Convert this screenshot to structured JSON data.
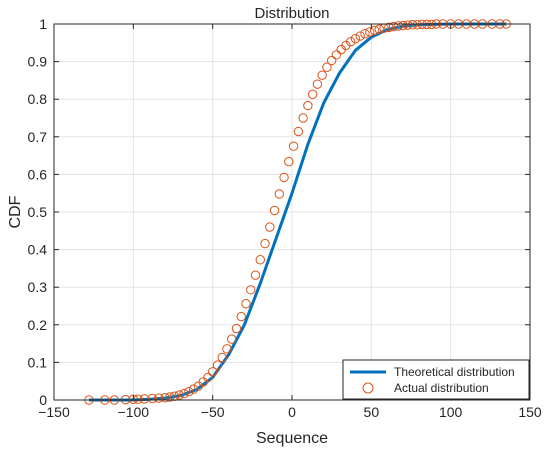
{
  "chart_data": {
    "type": "line",
    "title": "Distribution",
    "xlabel": "Sequence",
    "ylabel": "CDF",
    "xlim": [
      -150,
      150
    ],
    "ylim": [
      0,
      1
    ],
    "xticks": [
      "−150",
      "−100",
      "−50",
      "0",
      "50",
      "100",
      "150"
    ],
    "xtick_values": [
      -150,
      -100,
      -50,
      0,
      50,
      100,
      150
    ],
    "yticks": [
      "0",
      "0.1",
      "0.2",
      "0.3",
      "0.4",
      "0.5",
      "0.6",
      "0.7",
      "0.8",
      "0.9",
      "1"
    ],
    "ytick_values": [
      0,
      0.1,
      0.2,
      0.3,
      0.4,
      0.5,
      0.6,
      0.7,
      0.8,
      0.9,
      1
    ],
    "grid": true,
    "legend_position": "bottom-right",
    "series": [
      {
        "name": "Theoretical distribution",
        "style": "line",
        "color": "#0072BD",
        "x": [
          -128,
          -100,
          -90,
          -80,
          -70,
          -60,
          -50,
          -40,
          -30,
          -20,
          -10,
          0,
          10,
          20,
          30,
          40,
          50,
          60,
          70,
          80,
          90,
          100,
          110,
          120,
          135
        ],
        "y": [
          0.0,
          0.0,
          0.002,
          0.005,
          0.012,
          0.028,
          0.06,
          0.12,
          0.2,
          0.31,
          0.43,
          0.55,
          0.68,
          0.79,
          0.87,
          0.93,
          0.965,
          0.985,
          0.994,
          0.998,
          0.999,
          1.0,
          1.0,
          1.0,
          1.0
        ]
      },
      {
        "name": "Actual distribution",
        "style": "markers",
        "marker": "circle",
        "color": "#D95319",
        "x": [
          -128,
          -118,
          -112,
          -105,
          -100,
          -97,
          -93,
          -88,
          -84,
          -80,
          -77,
          -74,
          -71,
          -68,
          -65,
          -62,
          -59,
          -56,
          -53,
          -50,
          -47,
          -44,
          -41,
          -38,
          -35,
          -32,
          -29,
          -26,
          -23,
          -20,
          -17,
          -14,
          -11,
          -8,
          -5,
          -2,
          1,
          4,
          7,
          10,
          13,
          16,
          19,
          22,
          25,
          28,
          31,
          34,
          37,
          40,
          43,
          46,
          49,
          52,
          55,
          58,
          61,
          64,
          67,
          70,
          73,
          76,
          79,
          82,
          85,
          88,
          91,
          95,
          100,
          105,
          110,
          115,
          120,
          126,
          131,
          135
        ],
        "y": [
          0.0,
          0.0,
          0.0,
          0.001,
          0.002,
          0.002,
          0.003,
          0.004,
          0.005,
          0.006,
          0.008,
          0.01,
          0.013,
          0.017,
          0.022,
          0.029,
          0.037,
          0.048,
          0.06,
          0.075,
          0.093,
          0.113,
          0.136,
          0.162,
          0.19,
          0.222,
          0.256,
          0.293,
          0.332,
          0.373,
          0.416,
          0.46,
          0.504,
          0.548,
          0.592,
          0.634,
          0.675,
          0.714,
          0.75,
          0.783,
          0.813,
          0.84,
          0.864,
          0.885,
          0.903,
          0.918,
          0.932,
          0.943,
          0.953,
          0.961,
          0.968,
          0.974,
          0.979,
          0.983,
          0.986,
          0.989,
          0.991,
          0.993,
          0.995,
          0.996,
          0.997,
          0.998,
          0.998,
          0.999,
          0.999,
          0.999,
          1.0,
          1.0,
          1.0,
          1.0,
          1.0,
          1.0,
          1.0,
          1.0,
          1.0,
          1.0
        ]
      }
    ]
  }
}
